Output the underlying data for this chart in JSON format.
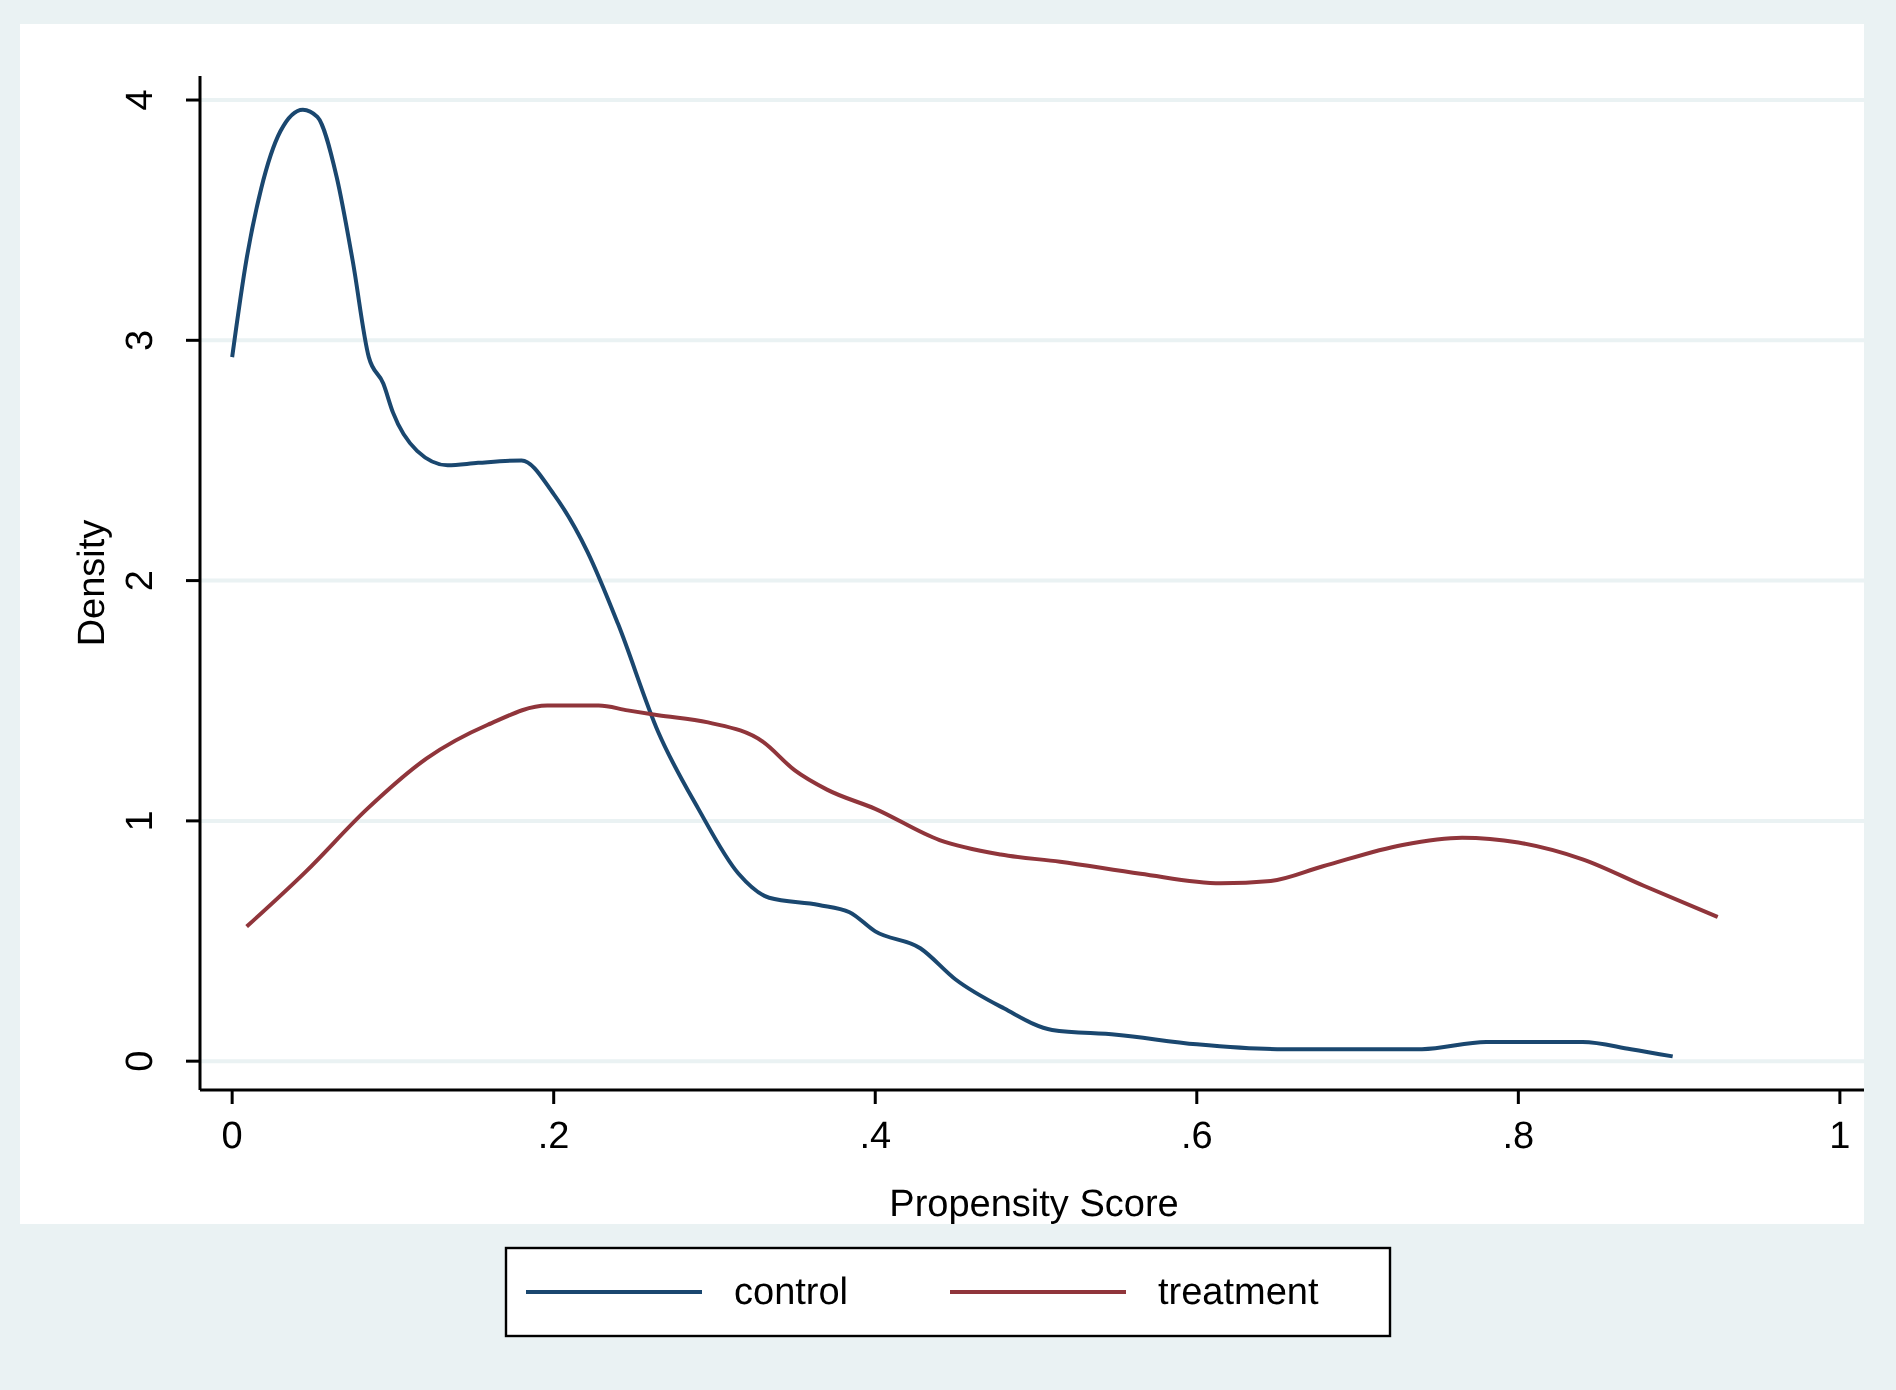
{
  "chart_data": {
    "type": "line",
    "xlabel": "Propensity Score",
    "ylabel": "Density",
    "xlim": [
      -0.02,
      1.015
    ],
    "xticks": [
      {
        "value": 0,
        "label": "0"
      },
      {
        "value": 0.2,
        "label": ".2"
      },
      {
        "value": 0.4,
        "label": ".4"
      },
      {
        "value": 0.6,
        "label": ".6"
      },
      {
        "value": 0.8,
        "label": ".8"
      },
      {
        "value": 1,
        "label": "1"
      }
    ],
    "ylim": [
      -0.12,
      4.1
    ],
    "yticks": [
      0,
      1,
      2,
      3,
      4
    ],
    "grid": "y",
    "legend": "bottom",
    "line_style": "solid",
    "marker": "none",
    "series": [
      {
        "name": "control",
        "color": "#1a476f",
        "x": [
          0,
          0.009,
          0.018,
          0.03,
          0.044,
          0.053,
          0.065,
          0.075,
          0.085,
          0.094,
          0.1,
          0.115,
          0.134,
          0.153,
          0.18,
          0.2,
          0.221,
          0.24,
          0.265,
          0.29,
          0.315,
          0.334,
          0.365,
          0.384,
          0.4,
          0.428,
          0.45,
          0.48,
          0.51,
          0.55,
          0.6,
          0.65,
          0.715,
          0.74,
          0.78,
          0.84,
          0.87,
          0.896
        ],
        "values": [
          2.93,
          3.34,
          3.63,
          3.87,
          3.96,
          3.93,
          3.68,
          3.33,
          2.93,
          2.82,
          2.7,
          2.54,
          2.48,
          2.49,
          2.5,
          2.36,
          2.12,
          1.82,
          1.37,
          1.05,
          0.78,
          0.68,
          0.65,
          0.62,
          0.54,
          0.47,
          0.34,
          0.22,
          0.13,
          0.11,
          0.07,
          0.05,
          0.05,
          0.05,
          0.08,
          0.08,
          0.05,
          0.02
        ]
      },
      {
        "name": "treatment",
        "color": "#90353b",
        "x": [
          0.009,
          0.046,
          0.084,
          0.121,
          0.159,
          0.196,
          0.228,
          0.246,
          0.265,
          0.296,
          0.33,
          0.35,
          0.37,
          0.4,
          0.44,
          0.478,
          0.515,
          0.565,
          0.615,
          0.646,
          0.678,
          0.728,
          0.765,
          0.8,
          0.84,
          0.878,
          0.924
        ],
        "values": [
          0.56,
          0.79,
          1.05,
          1.26,
          1.4,
          1.48,
          1.48,
          1.46,
          1.44,
          1.41,
          1.33,
          1.21,
          1.13,
          1.05,
          0.92,
          0.86,
          0.83,
          0.78,
          0.74,
          0.75,
          0.81,
          0.9,
          0.93,
          0.91,
          0.84,
          0.73,
          0.6
        ]
      }
    ]
  }
}
